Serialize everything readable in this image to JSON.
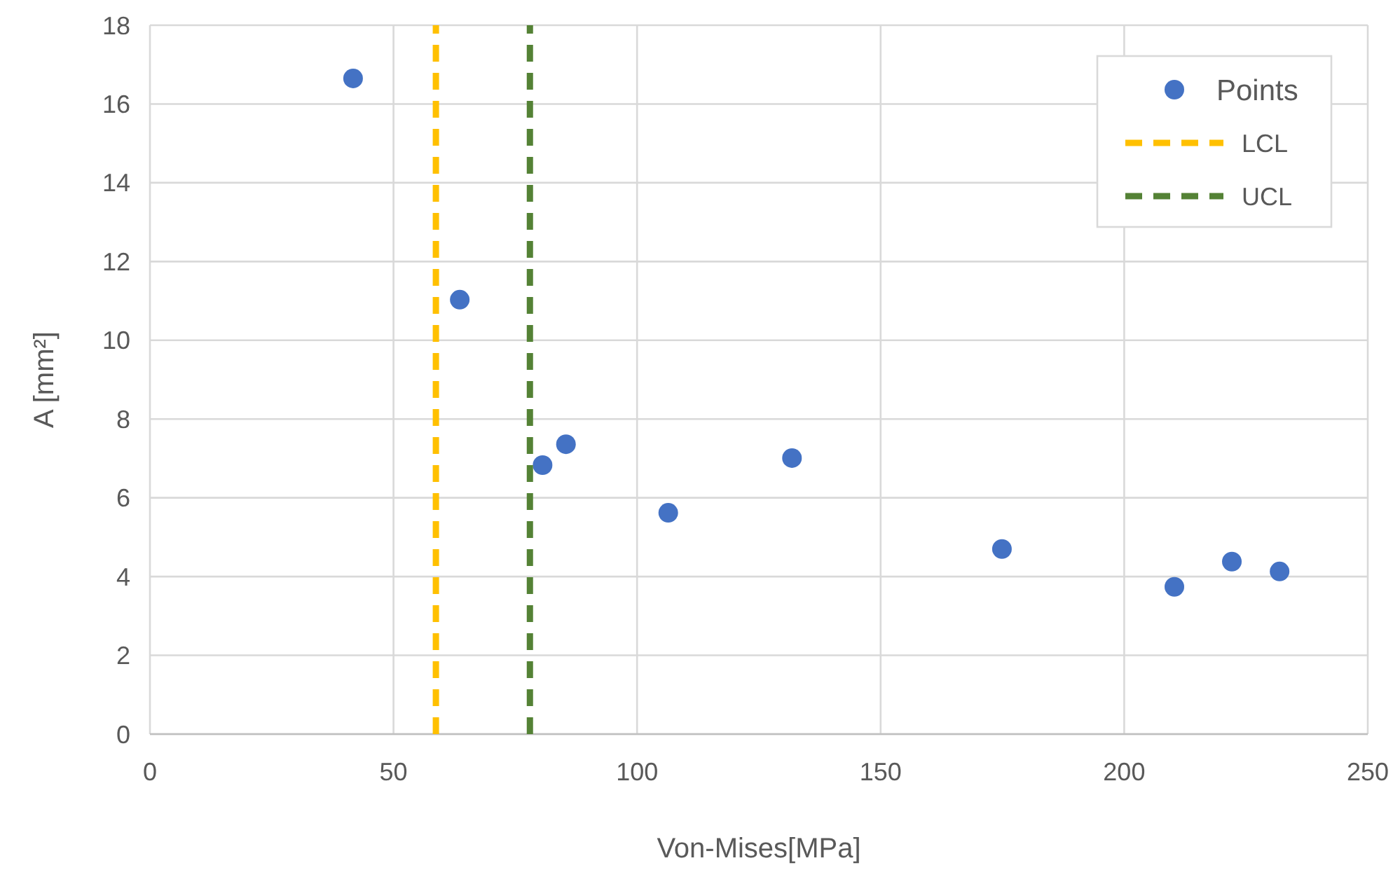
{
  "chart_data": {
    "type": "scatter",
    "xlabel": "Von-Mises[MPa]",
    "ylabel": "A [mm²]",
    "xlim": [
      0,
      250
    ],
    "xticks": [
      0,
      50,
      100,
      150,
      200,
      250
    ],
    "ylim": [
      0,
      18
    ],
    "yticks": [
      0,
      2,
      4,
      6,
      8,
      10,
      12,
      14,
      16,
      18
    ],
    "grid": true,
    "legend": "top right",
    "marker": "circle",
    "series": [
      {
        "name": "Points",
        "color": "#4472c4",
        "x": [
          41.7,
          63.6,
          80.6,
          85.4,
          106.4,
          131.8,
          174.9,
          210.3,
          222.1,
          231.9
        ],
        "values": [
          16.65,
          11.03,
          6.83,
          7.36,
          5.62,
          7.01,
          4.7,
          3.74,
          4.38,
          4.13
        ]
      },
      {
        "name": "LCL",
        "type": "line",
        "color": "#ffc000",
        "line_style": "dashed",
        "marker": "none",
        "x": [
          58.7,
          58.7
        ],
        "values": [
          0,
          18
        ]
      },
      {
        "name": "UCL",
        "type": "line",
        "color": "#548235",
        "line_style": "dashed",
        "marker": "none",
        "x": [
          78,
          78
        ],
        "values": [
          0,
          18
        ]
      }
    ]
  }
}
